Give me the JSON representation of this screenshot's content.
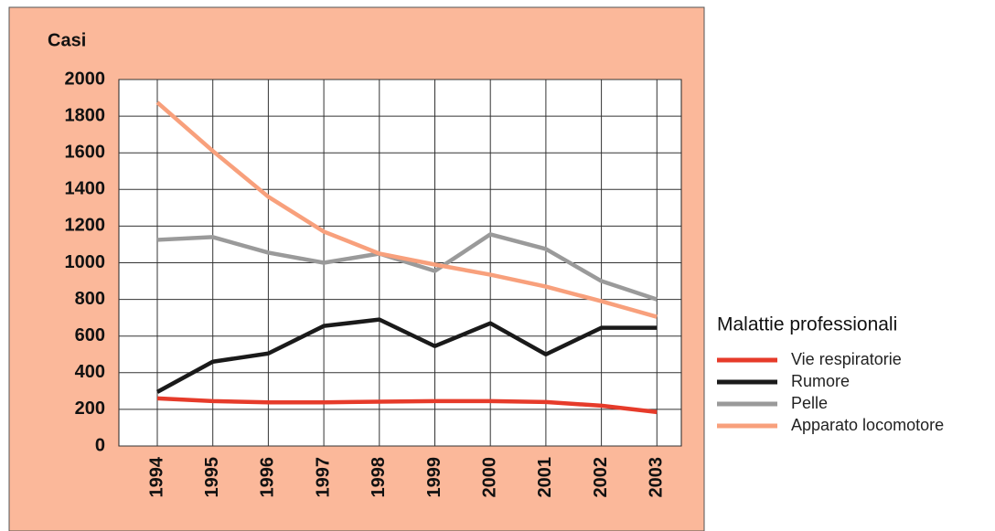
{
  "chart_data": {
    "type": "line",
    "y_label": "Casi",
    "legend_title": "Malattie professionali",
    "categories": [
      "1994",
      "1995",
      "1996",
      "1997",
      "1998",
      "1999",
      "2000",
      "2001",
      "2002",
      "2003"
    ],
    "series": [
      {
        "name": "Vie respiratorie",
        "color": "#e63b2a",
        "values": [
          260,
          245,
          238,
          238,
          242,
          245,
          245,
          240,
          220,
          185
        ]
      },
      {
        "name": "Rumore",
        "color": "#1a1a1a",
        "values": [
          295,
          460,
          505,
          655,
          690,
          545,
          670,
          500,
          645,
          645
        ]
      },
      {
        "name": "Pelle",
        "color": "#9a9a9a",
        "values": [
          1125,
          1140,
          1055,
          1000,
          1050,
          955,
          1155,
          1075,
          900,
          800
        ]
      },
      {
        "name": "Apparato locomotore",
        "color": "#f8a07c",
        "values": [
          1875,
          1610,
          1360,
          1170,
          1050,
          990,
          935,
          870,
          790,
          705
        ]
      }
    ],
    "ylim": [
      0,
      2000
    ],
    "yticks": [
      0,
      200,
      400,
      600,
      800,
      1000,
      1200,
      1400,
      1600,
      1800,
      2000
    ],
    "grid": true
  }
}
